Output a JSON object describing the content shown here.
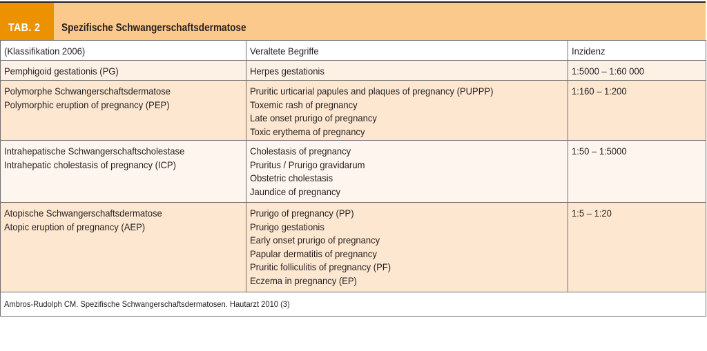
{
  "table": {
    "label": "TAB. 2",
    "title": "Spezifische Schwangerschaftsdermatose",
    "headers": [
      "(Klassifikation 2006)",
      "Veraltete Begriffe",
      "Inzidenz"
    ],
    "rows": [
      {
        "classification": [
          "Pemphigoid gestationis (PG)"
        ],
        "old_terms": [
          "Herpes gestationis"
        ],
        "incidence": "1:5000 – 1:60 000"
      },
      {
        "classification": [
          "Polymorphe Schwangerschaftsdermatose",
          "Polymorphic eruption of pregnancy (PEP)"
        ],
        "old_terms": [
          "Pruritic urticarial papules and plaques of pregnancy (PUPPP)",
          "Toxemic rash of pregnancy",
          "Late onset prurigo of pregnancy",
          "Toxic erythema of pregnancy"
        ],
        "incidence": "1:160 – 1:200"
      },
      {
        "classification": [
          "Intrahepatische Schwangerschaftscholestase",
          "Intrahepatic cholestasis of pregnancy (ICP)"
        ],
        "old_terms": [
          "Cholestasis of pregnancy",
          "Pruritus / Prurigo gravidarum",
          "Obstetric cholestasis",
          "Jaundice of pregnancy"
        ],
        "incidence": "1:50 – 1:5000"
      },
      {
        "classification": [
          "Atopische Schwangerschaftsdermatose",
          "Atopic eruption of pregnancy (AEP)"
        ],
        "old_terms": [
          "Prurigo of pregnancy (PP)",
          "Prurigo gestationis",
          "Early onset prurigo of pregnancy",
          "Papular dermatitis of pregnancy",
          "Pruritic folliculitis of pregnancy (PF)",
          "Eczema in pregnancy (EP)"
        ],
        "incidence": "1:5 – 1:20"
      }
    ],
    "source": "Ambros-Rudolph CM. Spezifische Schwangerschaftsdermatosen. Hautarzt 2010 (3)"
  },
  "colors": {
    "tab_label": "#ec9100",
    "header_band": "#fcc98c",
    "row_peach": "#fde7d0",
    "row_light": "#fdf1e6"
  }
}
